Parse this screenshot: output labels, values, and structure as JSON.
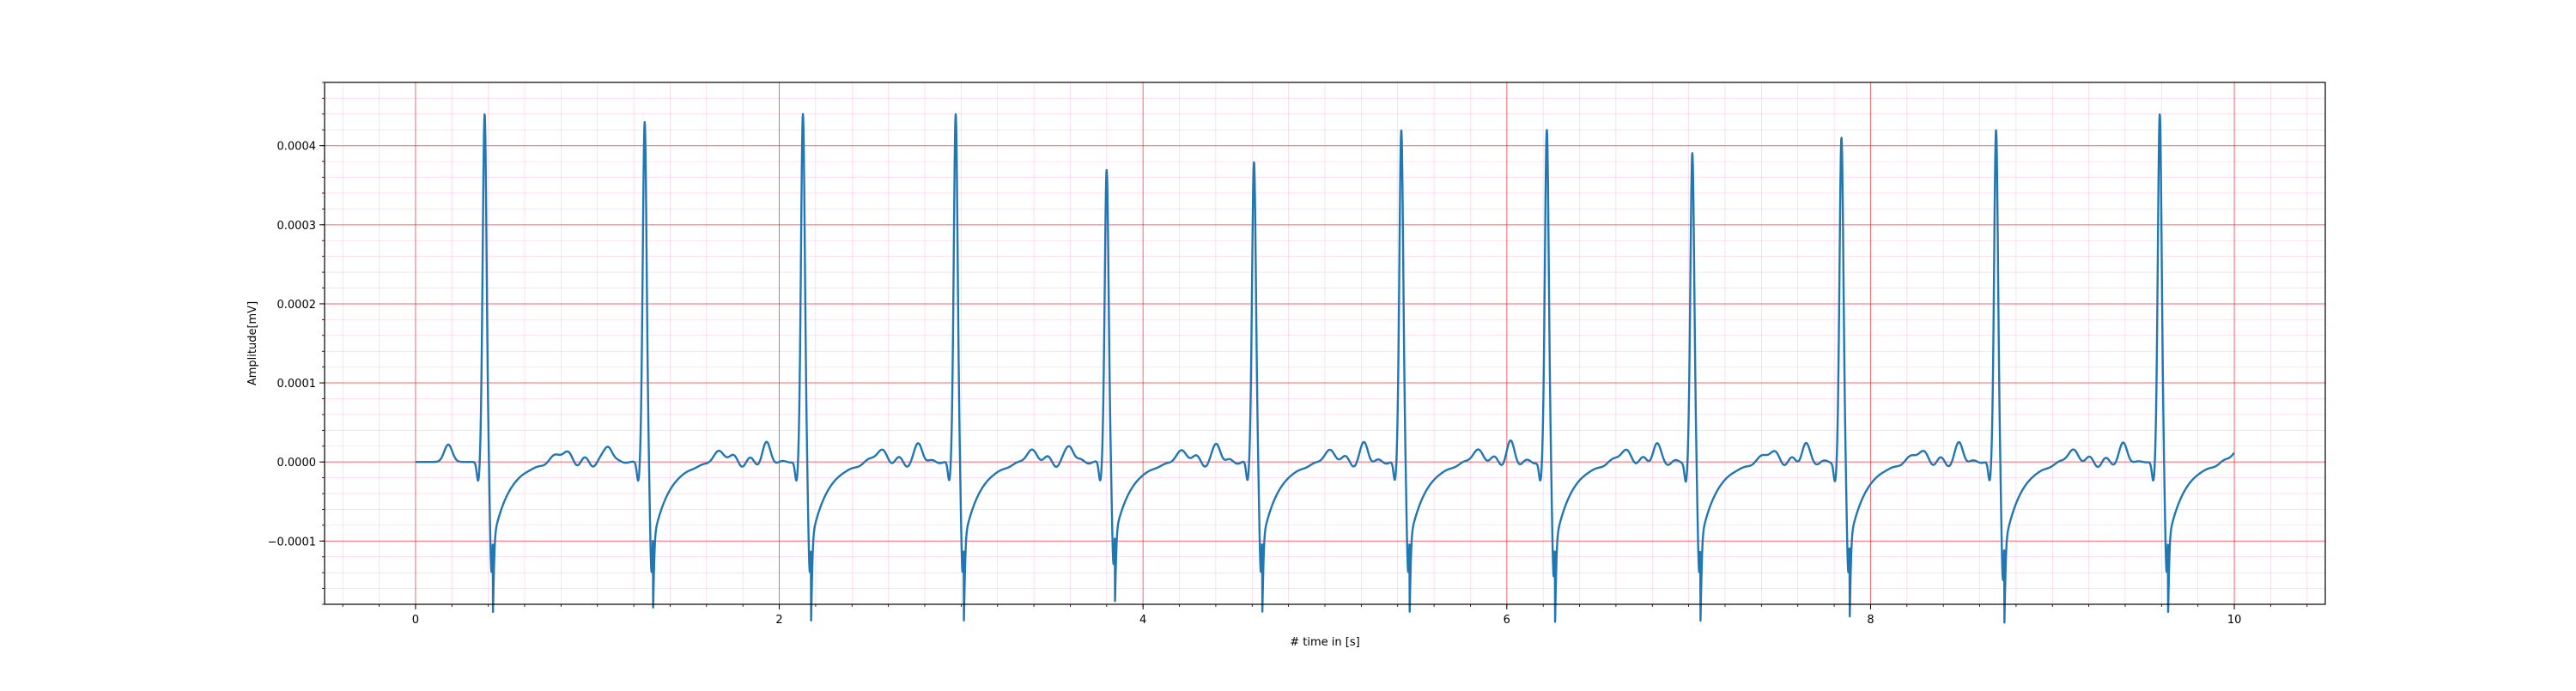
{
  "chart_data": {
    "type": "line",
    "title": "",
    "xlabel": "# time in [s]",
    "ylabel": "Amplitude[mV]",
    "xlim": [
      -0.5,
      10.5
    ],
    "ylim": [
      -0.00018,
      0.00048
    ],
    "xticks": [
      0,
      2,
      4,
      6,
      8,
      10
    ],
    "xtick_labels": [
      "0",
      "2",
      "4",
      "6",
      "8",
      "10"
    ],
    "yticks": [
      -0.0001,
      0.0,
      0.0001,
      0.0002,
      0.0003,
      0.0004
    ],
    "ytick_labels": [
      "−0.0001",
      "0.0000",
      "0.0001",
      "0.0002",
      "0.0003",
      "0.0004"
    ],
    "major_grid": true,
    "minor_grid": true,
    "legend": "none",
    "colors": {
      "line": "#1f77b4",
      "major_grid": "#ff0000",
      "minor_grid": "#ff69b4"
    },
    "ecg": {
      "r_peak_times": [
        0.38,
        1.26,
        2.13,
        2.97,
        3.8,
        4.61,
        5.42,
        6.22,
        7.02,
        7.84,
        8.69,
        9.59
      ],
      "r_peak_values": [
        0.00044,
        0.00043,
        0.00044,
        0.00044,
        0.00037,
        0.00038,
        0.00042,
        0.00042,
        0.00039,
        0.00041,
        0.00042,
        0.00044
      ],
      "s_trough_values": [
        -0.00014,
        -0.00014,
        -0.00014,
        -0.00014,
        -0.00013,
        -0.00014,
        -0.00014,
        -0.000145,
        -0.00014,
        -0.00014,
        -0.00015,
        -0.00014
      ],
      "t_start": 0.0,
      "t_end": 10.0
    },
    "series": [
      {
        "values_note": "ECG trace"
      }
    ]
  }
}
